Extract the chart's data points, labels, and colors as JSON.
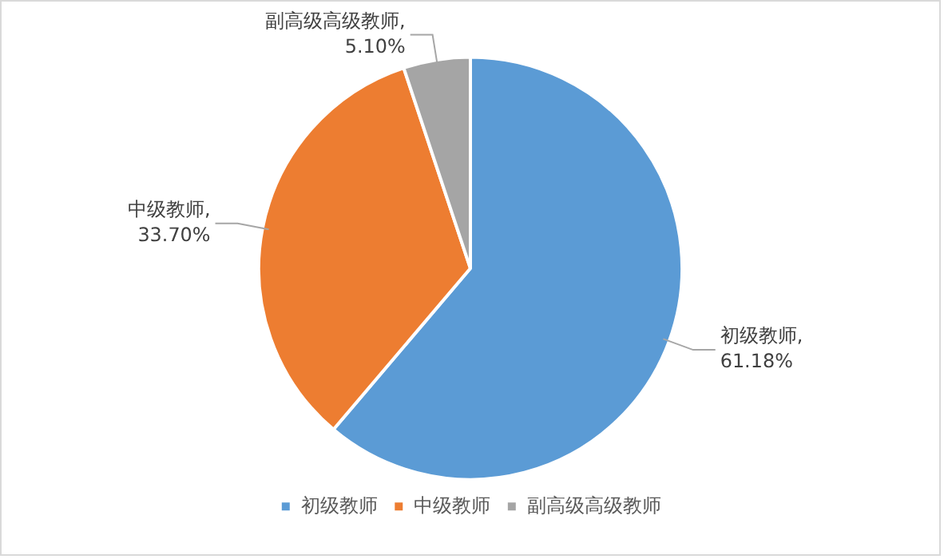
{
  "chart_data": {
    "type": "pie",
    "categories": [
      "初级教师",
      "中级教师",
      "副高级高级教师"
    ],
    "values": [
      61.18,
      33.7,
      5.1
    ],
    "colors": [
      "#5b9bd5",
      "#ed7d31",
      "#a5a5a5"
    ],
    "value_labels": [
      "初级教师,\n61.18%",
      "中级教师,\n33.70%",
      "副高级高级教师,\n5.10%"
    ],
    "legend": "bottom"
  }
}
